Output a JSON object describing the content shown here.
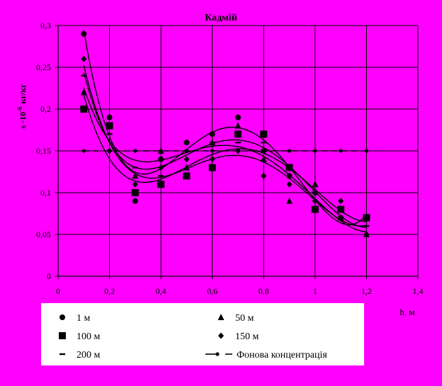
{
  "chart_data": {
    "type": "scatter",
    "title": "Кадмій",
    "ylabel": "s ·10",
    "ylabel_exp": "-6",
    "ylabel_unit": "кг/кг",
    "xlabel": "h, м",
    "xlim": [
      0,
      1.4
    ],
    "ylim": [
      0,
      0.3
    ],
    "grid": true,
    "legend_position": "bottom",
    "x_ticks": [
      0,
      0.2,
      0.4,
      0.6,
      0.8,
      1,
      1.2,
      1.4
    ],
    "x_tick_labels": [
      "0",
      "0,2",
      "0,4",
      "0,6",
      "0,8",
      "1",
      "1,2",
      "1,4"
    ],
    "y_ticks": [
      0,
      0.05,
      0.1,
      0.15,
      0.2,
      0.25,
      0.3
    ],
    "y_tick_labels": [
      "0",
      "0,05",
      "0,1",
      "0,15",
      "0,2",
      "0,25",
      "0,3"
    ],
    "x": [
      0.1,
      0.2,
      0.3,
      0.4,
      0.5,
      0.6,
      0.7,
      0.8,
      0.9,
      1.0,
      1.1,
      1.2
    ],
    "series": [
      {
        "name": "1 м",
        "marker": "circle",
        "values": [
          0.29,
          0.19,
          0.09,
          0.14,
          0.16,
          0.17,
          0.19,
          0.15,
          0.12,
          0.1,
          0.07,
          0.07
        ]
      },
      {
        "name": "50 м",
        "marker": "triangle",
        "values": [
          0.22,
          0.18,
          0.12,
          0.15,
          0.13,
          0.16,
          0.18,
          0.14,
          0.09,
          0.11,
          0.07,
          0.05
        ]
      },
      {
        "name": "100 м",
        "marker": "square",
        "values": [
          0.2,
          0.18,
          0.1,
          0.11,
          0.12,
          0.13,
          0.17,
          0.17,
          0.13,
          0.08,
          0.08,
          0.07
        ]
      },
      {
        "name": "150 м",
        "marker": "diamond",
        "values": [
          0.26,
          0.15,
          0.11,
          0.13,
          0.14,
          0.14,
          0.15,
          0.12,
          0.11,
          0.09,
          0.09,
          0.05
        ]
      },
      {
        "name": "200 м",
        "marker": "dash",
        "values": [
          0.24,
          0.17,
          0.13,
          0.12,
          0.15,
          0.16,
          0.16,
          0.16,
          0.13,
          0.1,
          0.07,
          0.06
        ]
      },
      {
        "name": "Фонова концентрація",
        "marker": "line-dot",
        "values": [
          0.15,
          0.15,
          0.15,
          0.15,
          0.15,
          0.15,
          0.15,
          0.15,
          0.15,
          0.15,
          0.15,
          0.15
        ]
      }
    ]
  }
}
